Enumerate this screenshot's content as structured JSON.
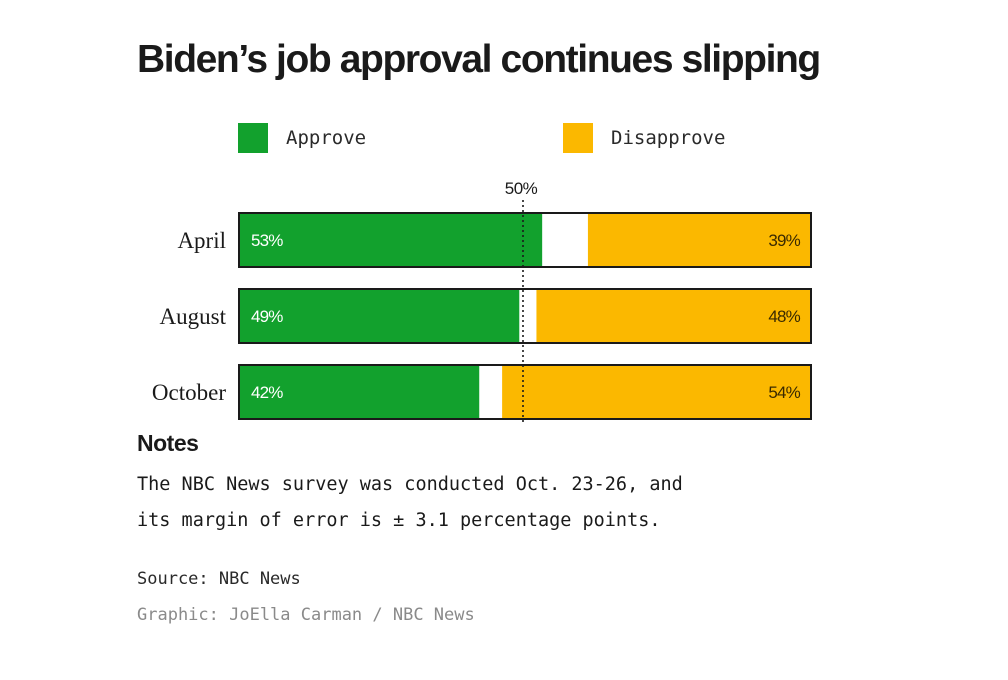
{
  "colors": {
    "approve": "#12a12d",
    "disapprove": "#fbb800",
    "unsure": "#ffffff",
    "border": "#1a1a1a"
  },
  "chart_data": {
    "type": "bar",
    "orientation": "horizontal",
    "stacked": true,
    "title": "Biden’s job approval continues slipping",
    "categories": [
      "April",
      "August",
      "October"
    ],
    "series": [
      {
        "name": "Approve",
        "values": [
          53,
          49,
          42
        ],
        "labels": [
          "53%",
          "49%",
          "42%"
        ]
      },
      {
        "name": "Disapprove",
        "values": [
          39,
          48,
          54
        ],
        "labels": [
          "39%",
          "48%",
          "54%"
        ]
      }
    ],
    "reference_line": {
      "value": 50,
      "label": "50%"
    },
    "xlim": [
      0,
      100
    ],
    "legend": "top"
  },
  "notes": {
    "heading": "Notes",
    "lines": [
      "The NBC News survey was conducted Oct. 23-26, and",
      "its margin of error is ± 3.1 percentage points."
    ]
  },
  "source": "Source: NBC News",
  "credit": "Graphic: JoElla Carman / NBC News"
}
